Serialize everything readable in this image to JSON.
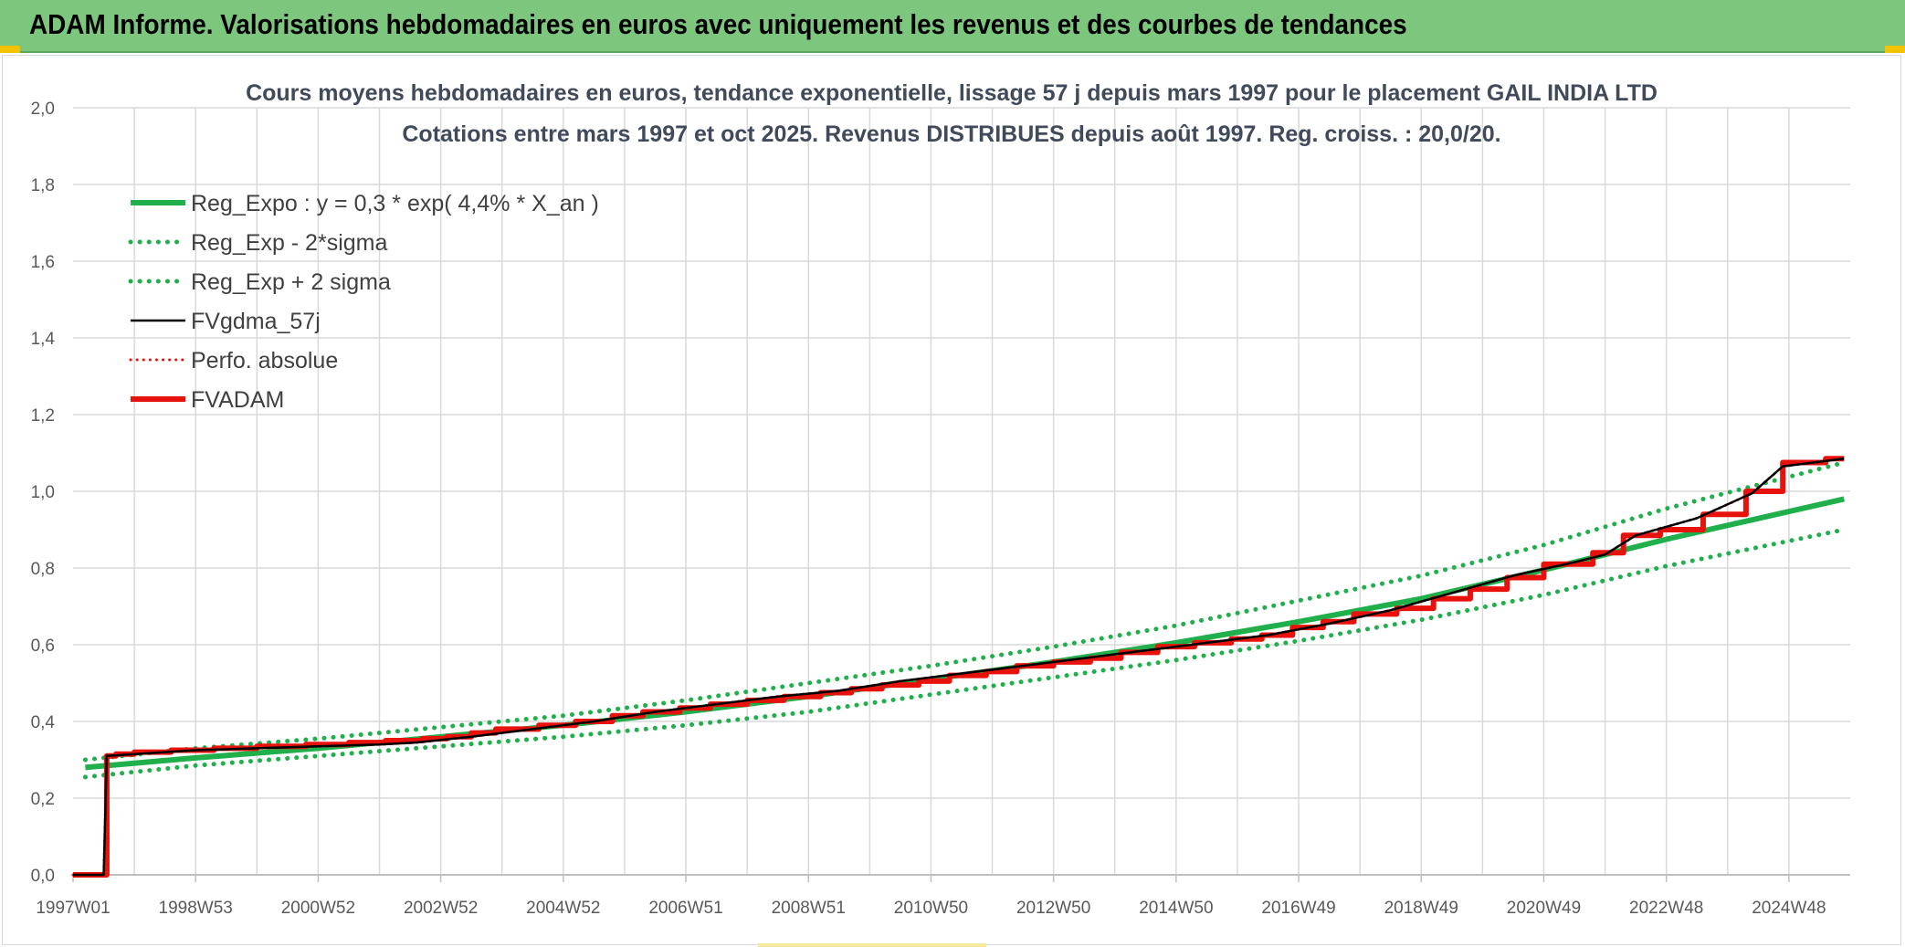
{
  "banner": {
    "title": "ADAM Informe. Valorisations hebdomadaires en euros avec uniquement les revenus et des courbes de tendances"
  },
  "colors": {
    "banner_bg": "#7dc67e",
    "reg_green": "#1fb04c",
    "dotted_green": "#1fb04c",
    "black_line": "#000000",
    "red_line": "#e8120c",
    "grid": "#d9d9d9"
  },
  "chart_data": {
    "type": "line",
    "title": "Cours moyens hebdomadaires en euros, tendance exponentielle, lissage 57 j depuis mars 1997 pour le placement GAIL INDIA LTD",
    "subtitle": "Cotations entre mars 1997 et oct 2025. Revenus DISTRIBUES depuis août 1997. Reg. croiss. : 20,0/20.",
    "x_tick_labels": [
      "1997W01",
      "1998W53",
      "2000W52",
      "2002W52",
      "2004W52",
      "2006W51",
      "2008W51",
      "2010W50",
      "2012W50",
      "2014W50",
      "2016W49",
      "2018W49",
      "2020W49",
      "2022W48",
      "2024W48"
    ],
    "x_range": [
      1997.0,
      2026.0
    ],
    "y_tick_labels": [
      "0,0",
      "0,2",
      "0,4",
      "0,6",
      "0,8",
      "1,0",
      "1,2",
      "1,4",
      "1,6",
      "1,8",
      "2,0"
    ],
    "ylim": [
      0,
      2.0
    ],
    "grid": true,
    "legend_position": "top-left",
    "series": [
      {
        "name": "Reg_Expo : y = 0,3 * exp( 4,4% *  X_an )",
        "style": "solid-thick",
        "color": "#1fb04c",
        "x": [
          1997.2,
          1999,
          2001,
          2003,
          2005,
          2007,
          2009,
          2011,
          2013,
          2015,
          2017,
          2019,
          2021,
          2023,
          2025.9
        ],
        "y": [
          0.28,
          0.305,
          0.33,
          0.36,
          0.39,
          0.425,
          0.465,
          0.51,
          0.555,
          0.605,
          0.66,
          0.72,
          0.795,
          0.875,
          0.98
        ]
      },
      {
        "name": "Reg_Exp - 2*sigma",
        "style": "dotted",
        "color": "#1fb04c",
        "x": [
          1997.2,
          1999,
          2001,
          2003,
          2005,
          2007,
          2009,
          2011,
          2013,
          2015,
          2017,
          2019,
          2021,
          2023,
          2025.9
        ],
        "y": [
          0.255,
          0.285,
          0.31,
          0.335,
          0.36,
          0.39,
          0.425,
          0.47,
          0.515,
          0.56,
          0.61,
          0.665,
          0.73,
          0.805,
          0.9
        ]
      },
      {
        "name": "Reg_Exp + 2 sigma",
        "style": "dotted",
        "color": "#1fb04c",
        "x": [
          1997.2,
          1999,
          2001,
          2003,
          2005,
          2007,
          2009,
          2011,
          2013,
          2015,
          2017,
          2019,
          2021,
          2023,
          2025.9
        ],
        "y": [
          0.3,
          0.33,
          0.355,
          0.385,
          0.415,
          0.455,
          0.5,
          0.545,
          0.595,
          0.65,
          0.715,
          0.78,
          0.86,
          0.955,
          1.075
        ]
      },
      {
        "name": "FVgdma_57j",
        "style": "solid-thin",
        "color": "#000000",
        "x": [
          1997.0,
          1997.5,
          1997.55,
          1998.5,
          1999,
          2000,
          2001,
          2002,
          2002.6,
          2003.5,
          2004.5,
          2005.5,
          2006.5,
          2007.5,
          2008.5,
          2009.5,
          2010.5,
          2011.5,
          2012.5,
          2013.5,
          2014.5,
          2015.5,
          2016.5,
          2017.5,
          2018.5,
          2019.5,
          2020.5,
          2021.5,
          2022.0,
          2022.5,
          2023.5,
          2024.4,
          2024.9,
          2025.9
        ],
        "y": [
          0.0,
          0.0,
          0.31,
          0.32,
          0.325,
          0.33,
          0.335,
          0.34,
          0.345,
          0.36,
          0.38,
          0.4,
          0.425,
          0.445,
          0.465,
          0.48,
          0.505,
          0.525,
          0.545,
          0.565,
          0.585,
          0.605,
          0.625,
          0.655,
          0.69,
          0.735,
          0.78,
          0.815,
          0.835,
          0.885,
          0.93,
          0.995,
          1.065,
          1.085
        ]
      },
      {
        "name": "Perfo. absolue",
        "style": "dotted-thin",
        "color": "#e8120c",
        "x": [
          1997.0,
          1997.5,
          1997.55,
          1998.5,
          1999,
          2000,
          2001,
          2002,
          2002.6,
          2003.5,
          2004.5,
          2005.5,
          2006.5,
          2007.5,
          2008.5,
          2009.5,
          2010.5,
          2011.5,
          2012.5,
          2013.5,
          2014.5,
          2015.5,
          2016.5,
          2017.5,
          2018.5,
          2019.5,
          2020.5,
          2021.5,
          2022.0,
          2022.5,
          2023.5,
          2024.4,
          2024.9,
          2025.9
        ],
        "y": [
          0.0,
          0.0,
          0.31,
          0.32,
          0.325,
          0.33,
          0.335,
          0.34,
          0.345,
          0.36,
          0.38,
          0.4,
          0.425,
          0.445,
          0.465,
          0.48,
          0.505,
          0.525,
          0.545,
          0.565,
          0.585,
          0.605,
          0.625,
          0.655,
          0.69,
          0.735,
          0.78,
          0.815,
          0.835,
          0.885,
          0.93,
          0.995,
          1.065,
          1.085
        ]
      },
      {
        "name": "FVADAM",
        "style": "step-thick",
        "color": "#e8120c",
        "x": [
          1997.0,
          1997.5,
          1997.55,
          1997.7,
          1998.0,
          1998.6,
          1999.3,
          2000.0,
          2000.8,
          2001.5,
          2002.1,
          2002.7,
          2003.1,
          2003.5,
          2003.9,
          2004.6,
          2005.2,
          2005.8,
          2006.3,
          2006.9,
          2007.4,
          2008.0,
          2008.6,
          2009.2,
          2009.7,
          2010.2,
          2010.8,
          2011.3,
          2011.9,
          2012.4,
          2013.0,
          2013.6,
          2014.1,
          2014.7,
          2015.3,
          2015.9,
          2016.4,
          2016.9,
          2017.4,
          2017.9,
          2018.6,
          2019.2,
          2019.8,
          2020.4,
          2021.0,
          2021.8,
          2022.3,
          2022.9,
          2023.6,
          2024.3,
          2024.9,
          2025.6,
          2025.9
        ],
        "y": [
          0.0,
          0.0,
          0.31,
          0.315,
          0.32,
          0.325,
          0.33,
          0.335,
          0.34,
          0.345,
          0.35,
          0.355,
          0.36,
          0.37,
          0.38,
          0.39,
          0.4,
          0.415,
          0.425,
          0.435,
          0.445,
          0.455,
          0.465,
          0.475,
          0.485,
          0.495,
          0.505,
          0.52,
          0.53,
          0.545,
          0.555,
          0.565,
          0.58,
          0.595,
          0.605,
          0.615,
          0.625,
          0.645,
          0.66,
          0.68,
          0.695,
          0.72,
          0.745,
          0.775,
          0.81,
          0.84,
          0.885,
          0.9,
          0.94,
          1.0,
          1.075,
          1.085,
          1.085
        ]
      }
    ]
  }
}
